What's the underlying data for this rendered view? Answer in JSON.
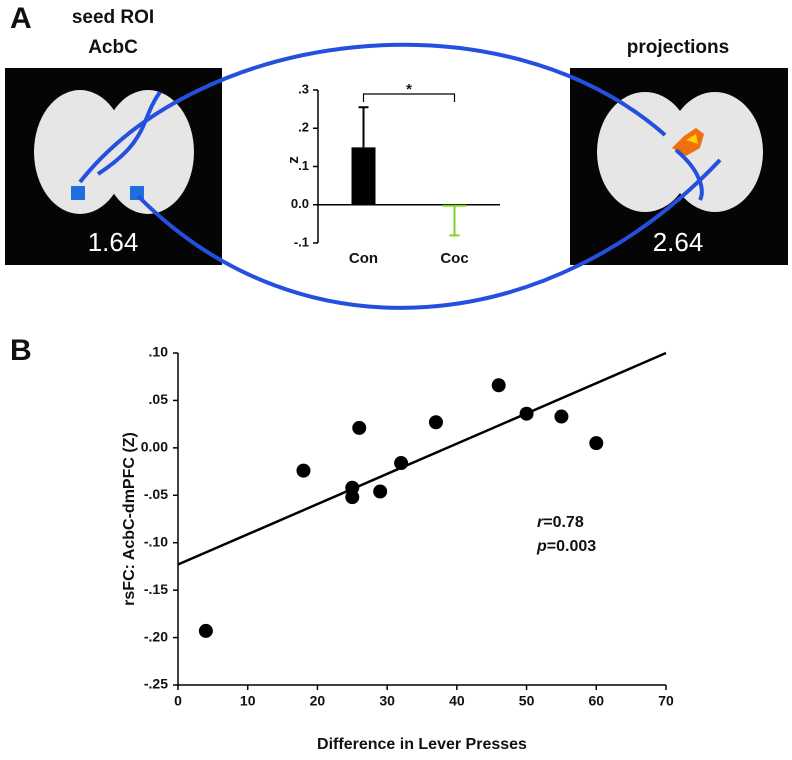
{
  "panel_labels": [
    "A",
    "B"
  ],
  "brains": [
    {
      "title": "seed ROI",
      "subtitle": "AcbC",
      "value": "1.64"
    },
    {
      "title": "projections",
      "value": "2.64"
    }
  ],
  "chart_data": [
    {
      "type": "bar",
      "categories": [
        "Con",
        "Coc"
      ],
      "values": [
        0.15,
        -0.005
      ],
      "errors": [
        0.105,
        0.075
      ],
      "colors": [
        "#000000",
        "#7ed321"
      ],
      "ylabel": "z",
      "annotation": "*",
      "ylim": [
        -0.1,
        0.3
      ],
      "yticks": [
        {
          "value": -0.1,
          "label": "-.1"
        },
        {
          "value": 0,
          "label": "0.0"
        },
        {
          "value": 0.1,
          "label": ".1"
        },
        {
          "value": 0.2,
          "label": ".2"
        },
        {
          "value": 0.3,
          "label": ".3"
        }
      ]
    },
    {
      "type": "scatter",
      "xlabel": "Difference in Lever Presses",
      "ylabel": "rsFC: AcbC-dmPFC (Z)",
      "x": [
        4,
        18,
        25,
        25,
        26,
        29,
        32,
        37,
        46,
        50,
        55,
        60
      ],
      "values": [
        -0.193,
        -0.024,
        -0.042,
        -0.052,
        0.021,
        -0.046,
        -0.016,
        0.027,
        0.066,
        0.036,
        0.033,
        0.005
      ],
      "color": "#000000",
      "fit_line": {
        "x": [
          0,
          70
        ],
        "y": [
          -0.123,
          0.1
        ]
      },
      "annotations": [
        {
          "symbol": "r",
          "text": "=0.78"
        },
        {
          "symbol": "p",
          "text": "=0.003"
        }
      ],
      "xlim": [
        0,
        70
      ],
      "xticks": [
        0,
        10,
        20,
        30,
        40,
        50,
        60,
        70
      ],
      "ylim": [
        -0.25,
        0.1
      ],
      "yticks": [
        {
          "value": -0.25,
          "label": "-.25"
        },
        {
          "value": -0.2,
          "label": "-.20"
        },
        {
          "value": -0.15,
          "label": "-.15"
        },
        {
          "value": -0.1,
          "label": "-.10"
        },
        {
          "value": -0.05,
          "label": "-.05"
        },
        {
          "value": 0,
          "label": "0.00"
        },
        {
          "value": 0.05,
          "label": ".05"
        },
        {
          "value": 0.1,
          "label": ".10"
        }
      ]
    }
  ]
}
